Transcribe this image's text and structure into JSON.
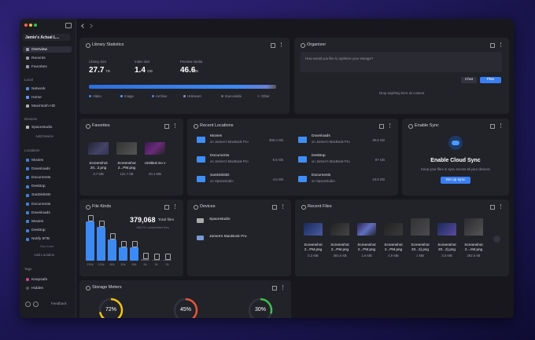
{
  "sidebar": {
    "library_name": "Jamie's Actual L...",
    "nav": [
      "Overview",
      "Recents",
      "Favorites"
    ],
    "local_title": "Local",
    "local": [
      "Network",
      "Home",
      "Macintosh HD"
    ],
    "devices_title": "Devices",
    "devices": [
      "Spacestudio"
    ],
    "add_device": "Add Device",
    "locations_title": "Locations",
    "locations": [
      "Movies",
      "Downloads",
      "Documents",
      "Desktop",
      "SanDiskSD",
      "Documents",
      "Downloads",
      "Movies",
      "Desktop",
      "Notify BTB"
    ],
    "see_more": "See more",
    "add_location": "Add Location",
    "tags_title": "Tags",
    "tags": [
      "Keepsafe",
      "Hidden"
    ],
    "feedback": "Feedback"
  },
  "library_stats": {
    "title": "Library Statistics",
    "stats": [
      {
        "label": "Library size",
        "value": "27.7",
        "unit": "TB"
      },
      {
        "label": "Index size",
        "value": "1.4",
        "unit": "GB"
      },
      {
        "label": "Preview media",
        "value": "46.6",
        "unit": "MB"
      }
    ],
    "legend": [
      "Video",
      "Image",
      "Archive",
      "Unknown",
      "Executable",
      "Other"
    ]
  },
  "organizer": {
    "title": "Organizer",
    "placeholder": "How would you like to optimize your storage?",
    "buttons": [
      "Chat",
      "Plan"
    ],
    "drop": "Drop anything here as context"
  },
  "favorites": {
    "title": "Favorites",
    "items": [
      {
        "name": "Screenshot 20...2.png",
        "size": "3.7 MB"
      },
      {
        "name": "Screenshot 2...PM.png",
        "size": "121.7 kB"
      },
      {
        "name": "Untitled.mo v",
        "size": "20.1 MB"
      }
    ]
  },
  "recent_locations": {
    "title": "Recent Locations",
    "items": [
      {
        "name": "Movies",
        "sub": "on James's MacBook Pro",
        "size": "395.3 GB"
      },
      {
        "name": "Downloads",
        "sub": "on James's MacBook Pro",
        "size": "35.8 GB"
      },
      {
        "name": "Documents",
        "sub": "on James's MacBook Pro",
        "size": "5.6 GB"
      },
      {
        "name": "Desktop",
        "sub": "on James's MacBook Pro",
        "size": "87 GB"
      },
      {
        "name": "SanDiskSD",
        "sub": "on Spacestudio",
        "size": "4.6 GB"
      },
      {
        "name": "Documents",
        "sub": "on Spacestudio",
        "size": "16.8 GB"
      }
    ]
  },
  "enable_sync": {
    "title": "Enable Sync",
    "heading": "Enable Cloud Sync",
    "text": "Keep your files in sync across all your devices",
    "button": "Set up sync"
  },
  "file_kinds": {
    "title": "File Kinds",
    "total": "379,068",
    "total_label": "Total files",
    "sub": "165,070 unidentified files",
    "values": [
      150,
      130,
      80,
      50,
      50,
      5,
      3,
      2
    ],
    "value_labels": [
      "150k",
      "130k",
      "80k",
      "50k",
      "50k",
      "5k",
      "3k",
      "2k"
    ]
  },
  "devices": {
    "title": "Devices",
    "items": [
      "Spacestudio",
      "James's MacBook Pro"
    ]
  },
  "recent_files": {
    "title": "Recent Files",
    "items": [
      {
        "name": "Screenshot 2...PM.png",
        "size": "5.3 MB"
      },
      {
        "name": "Screenshot 2...PM.png",
        "size": "364.6 kB"
      },
      {
        "name": "Screenshot 2...PM.png",
        "size": "1.6 MB"
      },
      {
        "name": "Screenshot 2...PM.png",
        "size": "4.9 MB"
      },
      {
        "name": "Screenshot 20...2).png",
        "size": "1 MB"
      },
      {
        "name": "Screenshot 20...2).png",
        "size": "3.5 MB"
      },
      {
        "name": "Screenshot 2...AM.png",
        "size": "292.5 kB"
      }
    ]
  },
  "storage_meters": {
    "title": "Storage Meters",
    "values": [
      72,
      45,
      30
    ],
    "value_labels": [
      "72%",
      "45%",
      "30%"
    ]
  }
}
